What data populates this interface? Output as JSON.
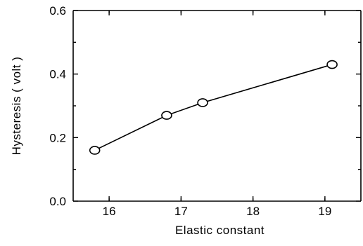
{
  "chart_data": {
    "type": "line",
    "title": "",
    "xlabel": "Elastic constant",
    "ylabel": "Hysteresis ( volt )",
    "xlim": [
      15.5,
      19.5
    ],
    "ylim": [
      0.0,
      0.6
    ],
    "x_ticks": [
      16,
      17,
      18,
      19
    ],
    "x_tick_labels": [
      "16",
      "17",
      "18",
      "19"
    ],
    "y_ticks": [
      0.0,
      0.2,
      0.4,
      0.6
    ],
    "y_tick_labels": [
      "0.0",
      "0.2",
      "0.4",
      "0.6"
    ],
    "grid": false,
    "legend": "none",
    "marker": "open-circle",
    "series": [
      {
        "x": [
          15.8,
          16.8,
          17.3,
          19.1
        ],
        "y": [
          0.16,
          0.27,
          0.31,
          0.43
        ]
      }
    ]
  }
}
